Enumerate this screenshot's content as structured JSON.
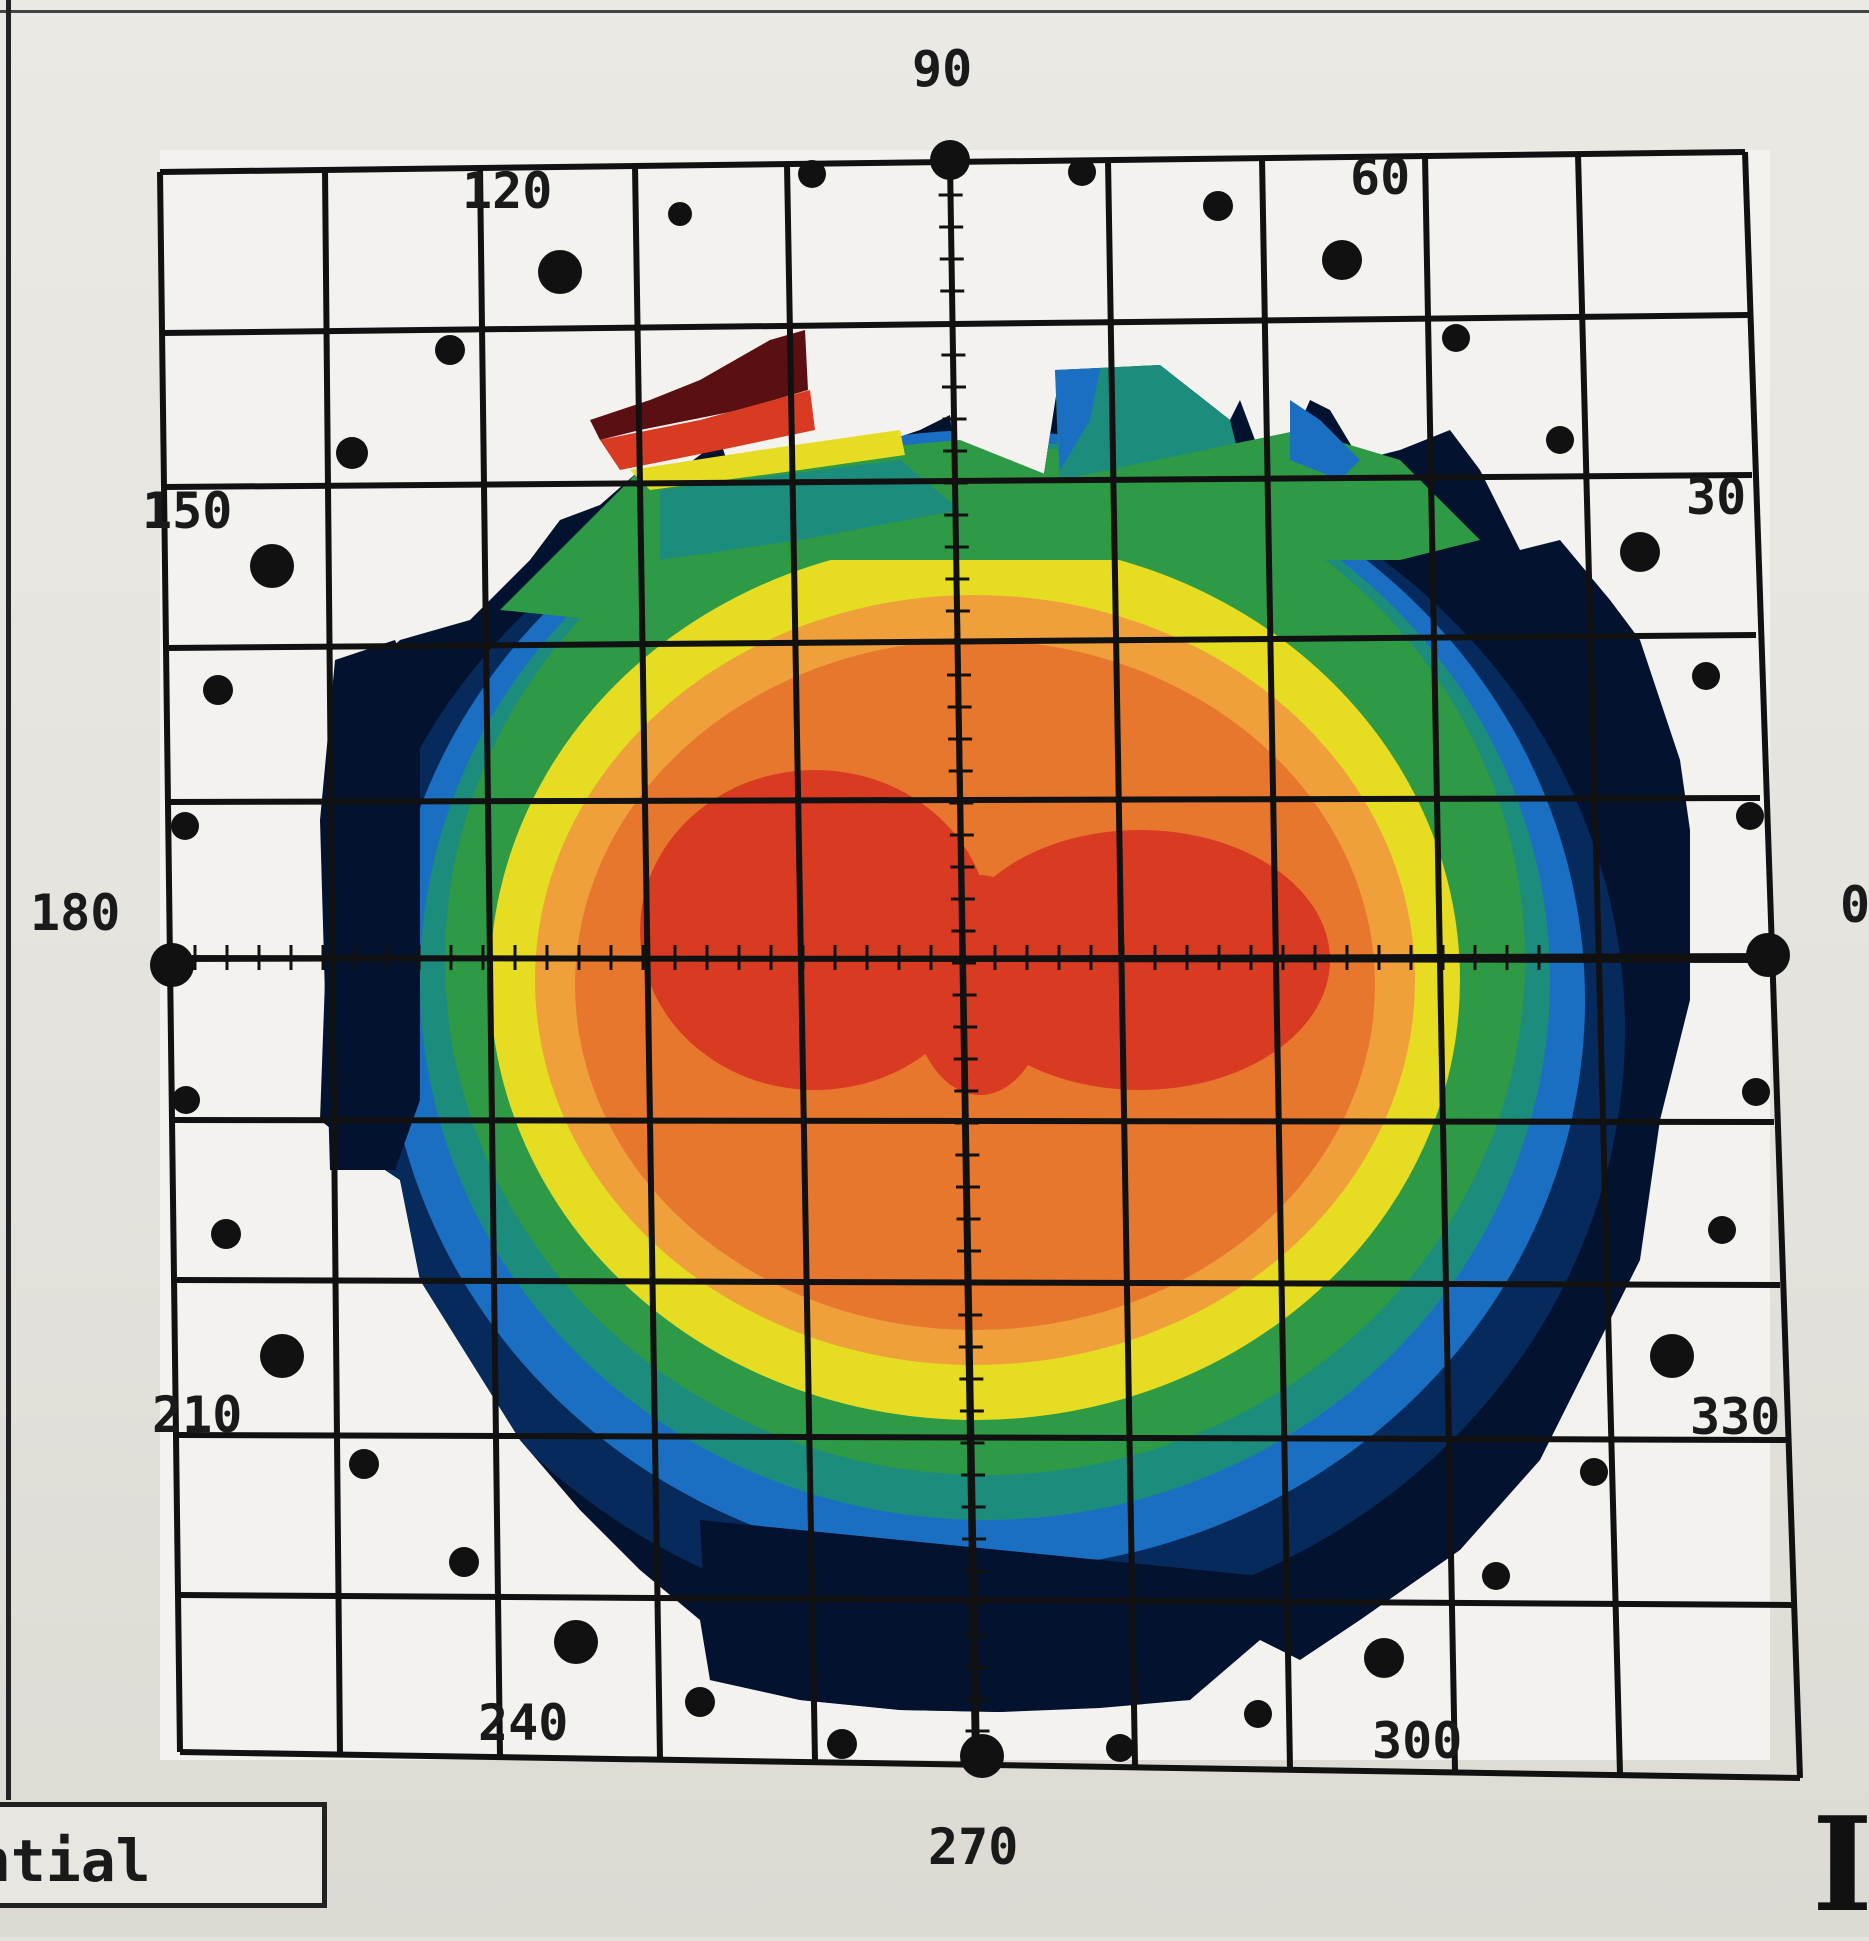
{
  "topography": {
    "angle_labels": {
      "a0": "0",
      "a30": "30",
      "a60": "60",
      "a90": "90",
      "a120": "120",
      "a150": "150",
      "a180": "180",
      "a210": "210",
      "a240": "240",
      "a270": "270",
      "a300": "300",
      "a330": "330"
    },
    "map_type_partial": "ntial",
    "side_letter": "I",
    "colors": {
      "darkest_red": "#5a0f12",
      "red": "#d83a22",
      "orange": "#e8772e",
      "light_orange": "#efa03a",
      "yellow": "#e6dc22",
      "green": "#2f9a46",
      "teal": "#1c8c7d",
      "blue": "#1a6fc2",
      "navy": "#062a5c",
      "black_navy": "#03122f",
      "grid": "#111111",
      "paper": "#e8e6e1"
    }
  }
}
